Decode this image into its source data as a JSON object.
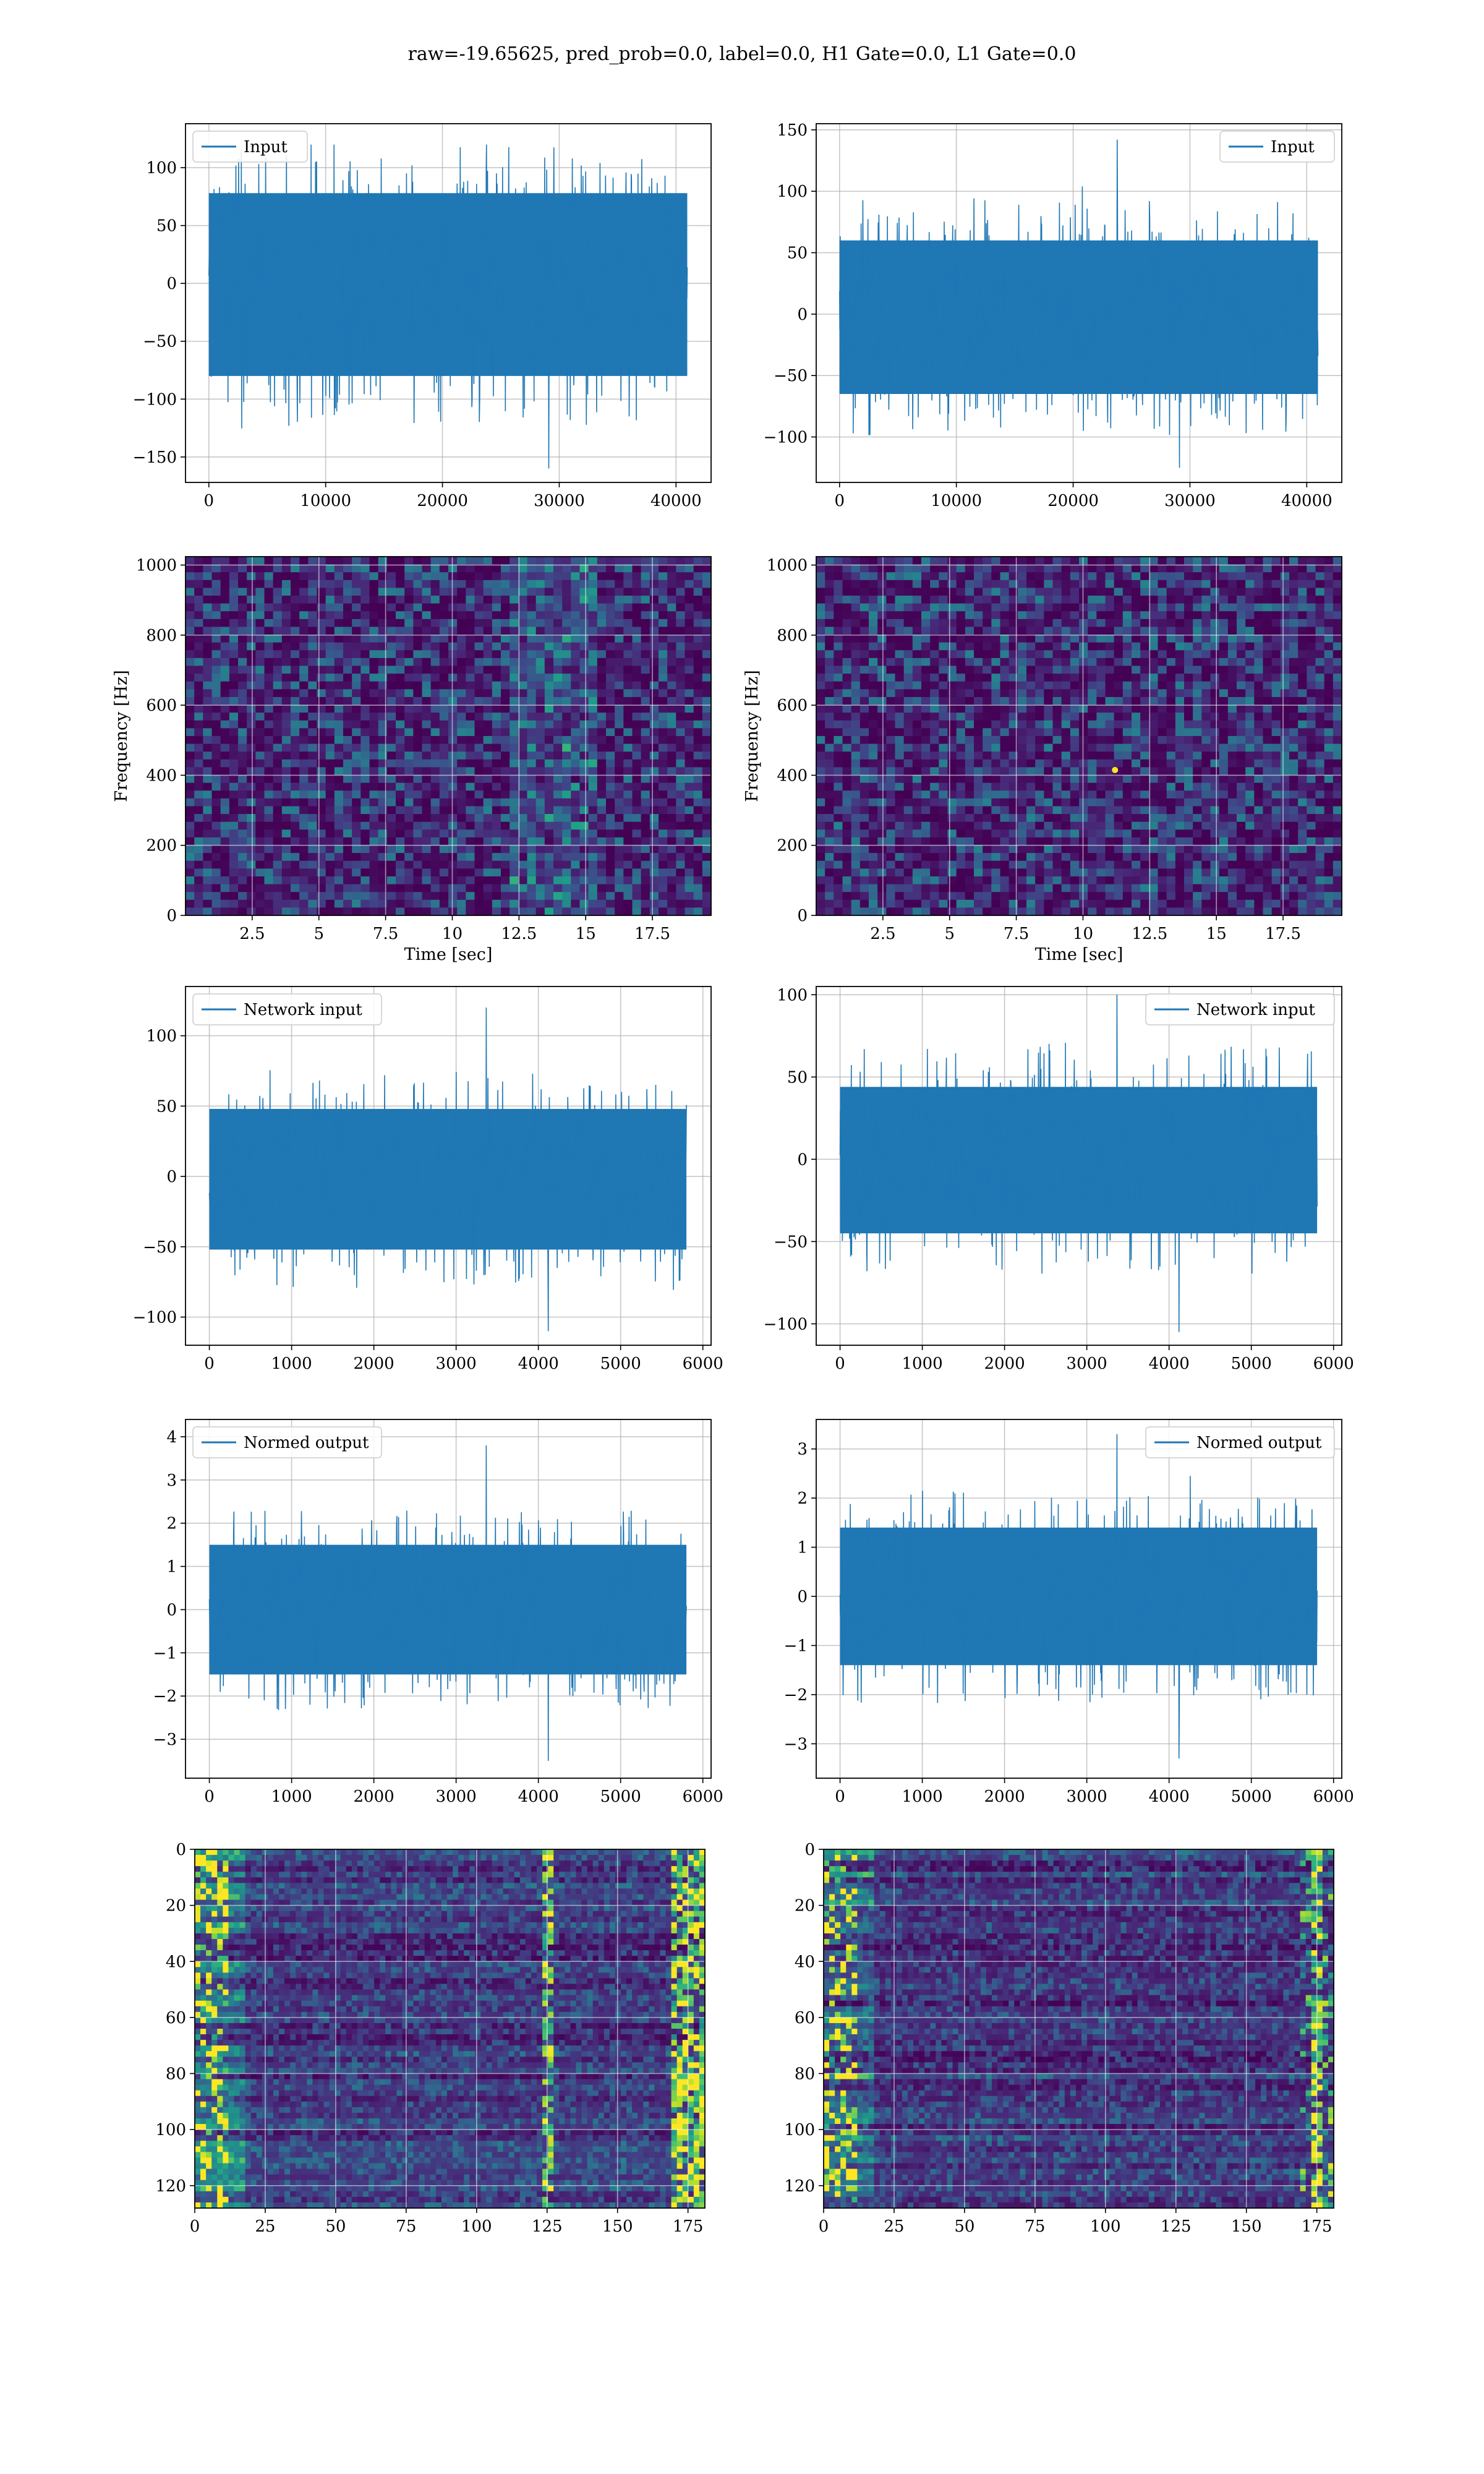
{
  "figure": {
    "title": "raw=-19.65625, pred_prob=0.0, label=0.0, H1 Gate=0.0, L1 Gate=0.0",
    "colors": {
      "line": "#1f77b4",
      "grid": "#b0b0b0",
      "viridis_low": "#440154",
      "viridis_mid": "#21918c",
      "viridis_high": "#fde725"
    }
  },
  "chart_data": [
    {
      "id": "input-h1",
      "type": "line",
      "title": "",
      "xlabel": "",
      "ylabel": "",
      "legend": "top-left",
      "grid": true,
      "xlim": [
        -2000,
        43000
      ],
      "ylim": [
        -172,
        138
      ],
      "xticks": [
        0,
        10000,
        20000,
        30000,
        40000
      ],
      "yticks": [
        -150,
        -100,
        -50,
        0,
        50,
        100
      ],
      "series": [
        {
          "name": "Input",
          "x_range": [
            0,
            40960
          ],
          "envelope": [
            -80,
            78
          ],
          "spike_range": [
            -160,
            120
          ]
        }
      ]
    },
    {
      "id": "input-l1",
      "type": "line",
      "title": "",
      "xlabel": "",
      "ylabel": "",
      "legend": "top-right",
      "grid": true,
      "xlim": [
        -2000,
        43000
      ],
      "ylim": [
        -137,
        155
      ],
      "xticks": [
        0,
        10000,
        20000,
        30000,
        40000
      ],
      "yticks": [
        -100,
        -50,
        0,
        50,
        100,
        150
      ],
      "series": [
        {
          "name": "Input",
          "x_range": [
            0,
            40960
          ],
          "envelope": [
            -65,
            60
          ],
          "spike_range": [
            -125,
            142
          ]
        }
      ]
    },
    {
      "id": "spectrogram-h1",
      "type": "heatmap",
      "title": "",
      "xlabel": "Time [sec]",
      "ylabel": "Frequency [Hz]",
      "grid": true,
      "xlim": [
        0,
        19.7
      ],
      "ylim": [
        0,
        1024
      ],
      "xticks": [
        2.5,
        5.0,
        7.5,
        10.0,
        12.5,
        15.0,
        17.5
      ],
      "yticks": [
        0,
        200,
        400,
        600,
        800,
        1000
      ],
      "colormap": "viridis",
      "bright_band_time": [
        12.0,
        15.5
      ]
    },
    {
      "id": "spectrogram-l1",
      "type": "heatmap",
      "title": "",
      "xlabel": "Time [sec]",
      "ylabel": "Frequency [Hz]",
      "grid": true,
      "xlim": [
        0,
        19.7
      ],
      "ylim": [
        0,
        1024
      ],
      "xticks": [
        2.5,
        5.0,
        7.5,
        10.0,
        12.5,
        15.0,
        17.5
      ],
      "yticks": [
        0,
        200,
        400,
        600,
        800,
        1000
      ],
      "colormap": "viridis",
      "hot_spot": [
        11.2,
        415
      ]
    },
    {
      "id": "network-input-h1",
      "type": "line",
      "title": "",
      "xlabel": "",
      "ylabel": "",
      "legend": "top-left",
      "grid": true,
      "xlim": [
        -290,
        6100
      ],
      "ylim": [
        -120,
        135
      ],
      "xticks": [
        0,
        1000,
        2000,
        3000,
        4000,
        5000,
        6000
      ],
      "yticks": [
        -100,
        -50,
        0,
        50,
        100
      ],
      "series": [
        {
          "name": "Network input",
          "x_range": [
            0,
            5800
          ],
          "envelope": [
            -52,
            48
          ],
          "spike_range": [
            -110,
            120
          ]
        }
      ]
    },
    {
      "id": "network-input-l1",
      "type": "line",
      "title": "",
      "xlabel": "",
      "ylabel": "",
      "legend": "top-right",
      "grid": true,
      "xlim": [
        -290,
        6100
      ],
      "ylim": [
        -113,
        105
      ],
      "xticks": [
        0,
        1000,
        2000,
        3000,
        4000,
        5000,
        6000
      ],
      "yticks": [
        -100,
        -50,
        0,
        50,
        100
      ],
      "series": [
        {
          "name": "Network input",
          "x_range": [
            0,
            5800
          ],
          "envelope": [
            -45,
            44
          ],
          "spike_range": [
            -105,
            100
          ]
        }
      ]
    },
    {
      "id": "normed-output-h1",
      "type": "line",
      "title": "",
      "xlabel": "",
      "ylabel": "",
      "legend": "top-left",
      "grid": true,
      "xlim": [
        -290,
        6100
      ],
      "ylim": [
        -3.9,
        4.4
      ],
      "xticks": [
        0,
        1000,
        2000,
        3000,
        4000,
        5000,
        6000
      ],
      "yticks": [
        -3,
        -2,
        -1,
        0,
        1,
        2,
        3,
        4
      ],
      "series": [
        {
          "name": "Normed output",
          "x_range": [
            0,
            5800
          ],
          "envelope": [
            -1.5,
            1.5
          ],
          "spike_range": [
            -3.5,
            3.8
          ]
        }
      ]
    },
    {
      "id": "normed-output-l1",
      "type": "line",
      "title": "",
      "xlabel": "",
      "ylabel": "",
      "legend": "top-right",
      "grid": true,
      "xlim": [
        -290,
        6100
      ],
      "ylim": [
        -3.7,
        3.6
      ],
      "xticks": [
        0,
        1000,
        2000,
        3000,
        4000,
        5000,
        6000
      ],
      "yticks": [
        -3,
        -2,
        -1,
        0,
        1,
        2,
        3
      ],
      "series": [
        {
          "name": "Normed output",
          "x_range": [
            0,
            5800
          ],
          "envelope": [
            -1.4,
            1.4
          ],
          "spike_range": [
            -3.3,
            3.3
          ]
        }
      ]
    },
    {
      "id": "feature-map-h1",
      "type": "heatmap",
      "title": "",
      "xlabel": "",
      "ylabel": "",
      "grid": true,
      "xlim": [
        0,
        181
      ],
      "ylim": [
        128,
        0
      ],
      "xticks": [
        0,
        25,
        50,
        75,
        100,
        125,
        150,
        175
      ],
      "yticks": [
        0,
        20,
        40,
        60,
        80,
        100,
        120
      ],
      "colormap": "viridis",
      "bright_columns": [
        125,
        172,
        178
      ]
    },
    {
      "id": "feature-map-l1",
      "type": "heatmap",
      "title": "",
      "xlabel": "",
      "ylabel": "",
      "grid": true,
      "xlim": [
        0,
        181
      ],
      "ylim": [
        128,
        0
      ],
      "xticks": [
        0,
        25,
        50,
        75,
        100,
        125,
        150,
        175
      ],
      "yticks": [
        0,
        20,
        40,
        60,
        80,
        100,
        120
      ],
      "colormap": "viridis",
      "bright_columns": [
        175
      ]
    }
  ]
}
